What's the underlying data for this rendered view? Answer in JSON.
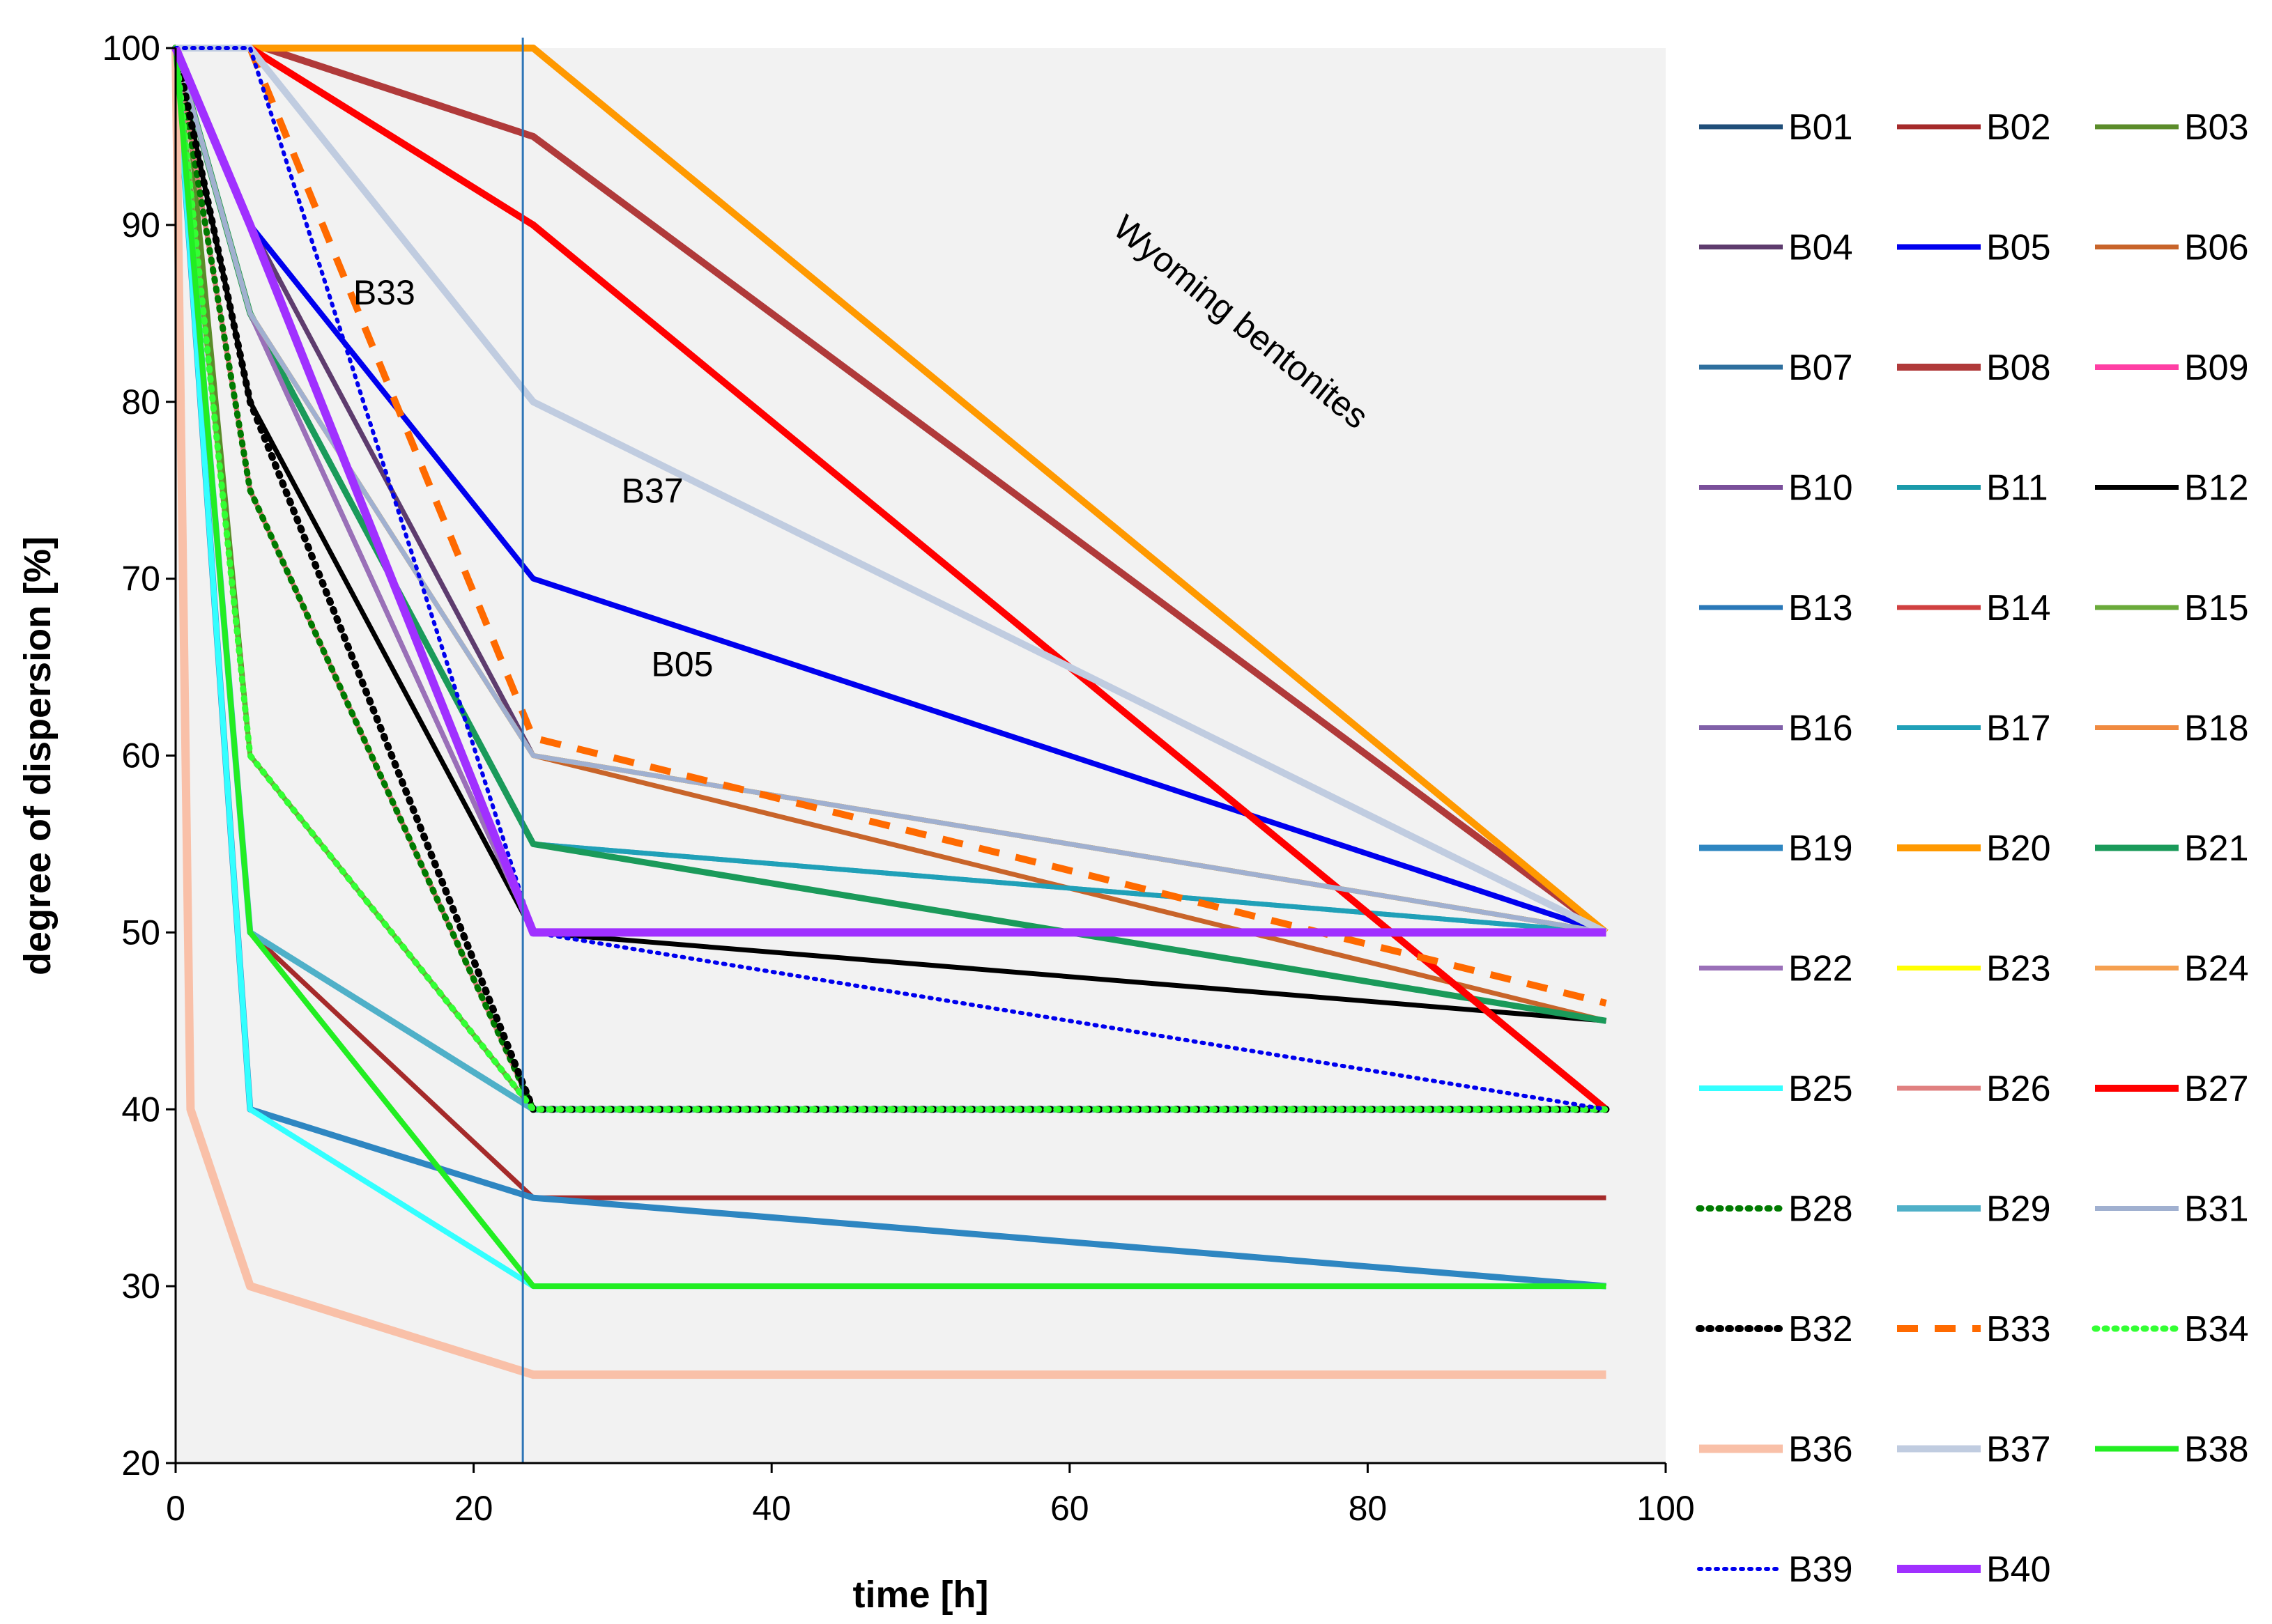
{
  "chart_data": {
    "type": "line",
    "title": "",
    "xlabel": "time [h]",
    "ylabel": "degree of dispersion [%]",
    "xlim": [
      0,
      100
    ],
    "ylim": [
      20,
      100
    ],
    "x_ticks": [
      0,
      20,
      40,
      60,
      80,
      100
    ],
    "y_ticks": [
      20,
      30,
      40,
      50,
      60,
      70,
      80,
      90,
      100
    ],
    "grid": false,
    "legend_position": "right",
    "vertical_marker_x": 23.3,
    "annotations": [
      {
        "text": "Wyoming bentonites",
        "x": 71,
        "y": 84,
        "rotation": 39
      },
      {
        "text": "B33",
        "x": 14,
        "y": 85.5
      },
      {
        "text": "B37",
        "x": 32,
        "y": 74.3
      },
      {
        "text": "B05",
        "x": 34,
        "y": 64.5
      }
    ],
    "series": [
      {
        "name": "B01",
        "color": "#1f4e79",
        "width": 7,
        "dash": "",
        "x": [
          0,
          5,
          24,
          96
        ],
        "y": [
          100,
          40,
          35,
          30
        ]
      },
      {
        "name": "B02",
        "color": "#a52a2a",
        "width": 7,
        "dash": "",
        "x": [
          0,
          5,
          24,
          96
        ],
        "y": [
          100,
          50,
          35,
          35
        ]
      },
      {
        "name": "B03",
        "color": "#5b8c2a",
        "width": 7,
        "dash": "",
        "x": [
          0,
          1,
          5,
          24,
          96
        ],
        "y": [
          100,
          95,
          60,
          40,
          40
        ]
      },
      {
        "name": "B04",
        "color": "#5e3c6e",
        "width": 7,
        "dash": "",
        "x": [
          0,
          5,
          24,
          96
        ],
        "y": [
          100,
          90,
          60,
          50
        ]
      },
      {
        "name": "B05",
        "color": "#0000ee",
        "width": 8,
        "dash": "",
        "x": [
          0,
          5,
          24,
          96
        ],
        "y": [
          100,
          90,
          70,
          50
        ]
      },
      {
        "name": "B06",
        "color": "#c8642a",
        "width": 7,
        "dash": "",
        "x": [
          0,
          5,
          24,
          96
        ],
        "y": [
          100,
          85,
          60,
          45
        ]
      },
      {
        "name": "B07",
        "color": "#2e6f9e",
        "width": 7,
        "dash": "",
        "x": [
          0,
          5,
          24,
          96
        ],
        "y": [
          100,
          40,
          35,
          30
        ]
      },
      {
        "name": "B08",
        "color": "#b03a3a",
        "width": 10,
        "dash": "",
        "x": [
          0,
          6,
          24,
          96
        ],
        "y": [
          100,
          100,
          95,
          50
        ]
      },
      {
        "name": "B09",
        "color": "#ff3fa4",
        "width": 8,
        "dash": "",
        "x": [
          0,
          24,
          96
        ],
        "y": [
          100,
          100,
          50
        ]
      },
      {
        "name": "B10",
        "color": "#7a4f9a",
        "width": 7,
        "dash": "",
        "x": [
          0,
          5,
          24,
          96
        ],
        "y": [
          100,
          85,
          50,
          50
        ]
      },
      {
        "name": "B11",
        "color": "#1a9aaa",
        "width": 7,
        "dash": "",
        "x": [
          0,
          5,
          24,
          96
        ],
        "y": [
          100,
          85,
          55,
          50
        ]
      },
      {
        "name": "B12",
        "color": "#000000",
        "width": 7,
        "dash": "",
        "x": [
          0,
          5,
          24,
          96
        ],
        "y": [
          100,
          80,
          50,
          45
        ]
      },
      {
        "name": "B13",
        "color": "#2a78b8",
        "width": 7,
        "dash": "",
        "x": [
          0,
          5,
          24,
          96
        ],
        "y": [
          100,
          40,
          35,
          30
        ]
      },
      {
        "name": "B14",
        "color": "#d04040",
        "width": 7,
        "dash": "",
        "x": [
          0,
          5,
          24,
          96
        ],
        "y": [
          100,
          75,
          40,
          40
        ]
      },
      {
        "name": "B15",
        "color": "#6aaa3a",
        "width": 7,
        "dash": "",
        "x": [
          0,
          5,
          24,
          96
        ],
        "y": [
          100,
          60,
          40,
          40
        ]
      },
      {
        "name": "B16",
        "color": "#8060a8",
        "width": 7,
        "dash": "",
        "x": [
          0,
          5,
          24,
          96
        ],
        "y": [
          100,
          85,
          50,
          50
        ]
      },
      {
        "name": "B17",
        "color": "#20a0b8",
        "width": 7,
        "dash": "",
        "x": [
          0,
          5,
          24,
          96
        ],
        "y": [
          100,
          85,
          55,
          50
        ]
      },
      {
        "name": "B18",
        "color": "#f08a40",
        "width": 7,
        "dash": "",
        "x": [
          0,
          5,
          24,
          96
        ],
        "y": [
          100,
          85,
          60,
          50
        ]
      },
      {
        "name": "B19",
        "color": "#2e86c1",
        "width": 9,
        "dash": "",
        "x": [
          0,
          5,
          24,
          96
        ],
        "y": [
          100,
          40,
          35,
          30
        ]
      },
      {
        "name": "B20",
        "color": "#ff9900",
        "width": 10,
        "dash": "",
        "x": [
          0,
          24,
          96
        ],
        "y": [
          100,
          100,
          50
        ]
      },
      {
        "name": "B21",
        "color": "#1a9a5a",
        "width": 9,
        "dash": "",
        "x": [
          0,
          5,
          24,
          96
        ],
        "y": [
          100,
          85,
          55,
          45
        ]
      },
      {
        "name": "B22",
        "color": "#9a70b8",
        "width": 7,
        "dash": "",
        "x": [
          0,
          5,
          24,
          96
        ],
        "y": [
          100,
          85,
          50,
          50
        ]
      },
      {
        "name": "B23",
        "color": "#ffff00",
        "width": 7,
        "dash": "",
        "x": [
          0,
          5,
          24,
          96
        ],
        "y": [
          100,
          85,
          60,
          50
        ]
      },
      {
        "name": "B24",
        "color": "#f5a050",
        "width": 7,
        "dash": "",
        "x": [
          0,
          5,
          24,
          96
        ],
        "y": [
          100,
          85,
          60,
          50
        ]
      },
      {
        "name": "B25",
        "color": "#33ffff",
        "width": 8,
        "dash": "",
        "x": [
          0,
          5,
          24,
          96
        ],
        "y": [
          100,
          40,
          30,
          30
        ]
      },
      {
        "name": "B26",
        "color": "#e08080",
        "width": 7,
        "dash": "",
        "x": [
          0,
          5,
          24,
          96
        ],
        "y": [
          100,
          75,
          40,
          40
        ]
      },
      {
        "name": "B27",
        "color": "#ff0000",
        "width": 10,
        "dash": "",
        "x": [
          0,
          5,
          24,
          96
        ],
        "y": [
          100,
          100,
          90,
          40
        ]
      },
      {
        "name": "B28",
        "color": "#007a00",
        "width": 9,
        "dash": "3 11",
        "x": [
          0,
          5,
          24,
          96
        ],
        "y": [
          100,
          75,
          40,
          40
        ]
      },
      {
        "name": "B29",
        "color": "#4fb0c8",
        "width": 9,
        "dash": "",
        "x": [
          0,
          5,
          24,
          96
        ],
        "y": [
          100,
          50,
          40,
          40
        ]
      },
      {
        "name": "B31",
        "color": "#a0b0d0",
        "width": 7,
        "dash": "",
        "x": [
          0,
          5,
          24,
          96
        ],
        "y": [
          100,
          85,
          60,
          50
        ]
      },
      {
        "name": "B32",
        "color": "#000000",
        "width": 10,
        "dash": "3 11",
        "x": [
          0,
          5,
          24,
          96
        ],
        "y": [
          100,
          80,
          40,
          40
        ]
      },
      {
        "name": "B33",
        "color": "#ff6a00",
        "width": 10,
        "dash": "30 24",
        "x": [
          0,
          5,
          24,
          96
        ],
        "y": [
          100,
          100,
          61,
          46
        ]
      },
      {
        "name": "B34",
        "color": "#33ff33",
        "width": 9,
        "dash": "3 11",
        "x": [
          0,
          5,
          24,
          96
        ],
        "y": [
          100,
          60,
          40,
          40
        ]
      },
      {
        "name": "B36",
        "color": "#f9c0a8",
        "width": 12,
        "dash": "",
        "x": [
          0,
          1,
          5,
          24,
          96
        ],
        "y": [
          100,
          40,
          30,
          25,
          25
        ]
      },
      {
        "name": "B37",
        "color": "#c0cce0",
        "width": 10,
        "dash": "",
        "x": [
          0,
          5,
          24,
          96
        ],
        "y": [
          100,
          100,
          80,
          50
        ]
      },
      {
        "name": "B38",
        "color": "#22ee22",
        "width": 8,
        "dash": "",
        "x": [
          0,
          5,
          24,
          96
        ],
        "y": [
          100,
          50,
          30,
          30
        ]
      },
      {
        "name": "B39",
        "color": "#0000ee",
        "width": 6,
        "dash": "3 9",
        "x": [
          0,
          5,
          24,
          96
        ],
        "y": [
          100,
          100,
          50,
          40
        ]
      },
      {
        "name": "B40",
        "color": "#a030ff",
        "width": 12,
        "dash": "",
        "x": [
          0,
          5,
          24,
          96
        ],
        "y": [
          100,
          90,
          50,
          50
        ]
      }
    ]
  }
}
